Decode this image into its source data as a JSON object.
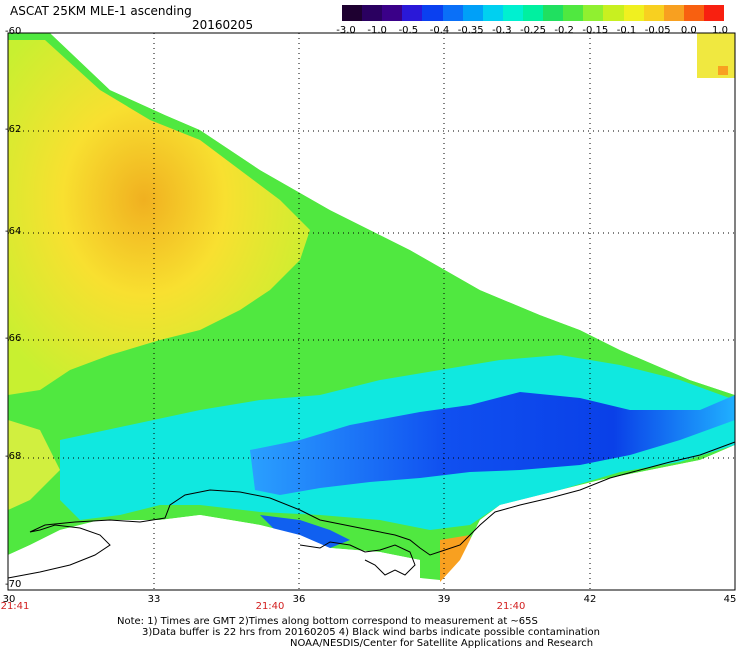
{
  "title": "ASCAT 25KM MLE-1 ascending",
  "date": "20160205",
  "colorbar": {
    "labels": [
      "-3.0",
      "-1.0",
      "-0.5",
      "-0.4",
      "-0.35",
      "-0.3",
      "-0.25",
      "-0.2",
      "-0.15",
      "-0.1",
      "-0.05",
      "0.0",
      "1.0"
    ],
    "colors": [
      "#1e0030",
      "#3a0088",
      "#2a18d8",
      "#0a50f0",
      "#0a90f8",
      "#00d0f0",
      "#00f0c0",
      "#20e060",
      "#70f030",
      "#c8f020",
      "#f8f020",
      "#f8a020",
      "#f82010"
    ]
  },
  "latitude_labels": [
    "-60",
    "-62",
    "-64",
    "-66",
    "-68",
    "-70"
  ],
  "longitude_labels": [
    "30",
    "33",
    "36",
    "39",
    "42",
    "45"
  ],
  "time_labels": [
    "21:41",
    "21:40",
    "21:40"
  ],
  "notes": {
    "line1": "Note: 1) Times are GMT 2)Times along bottom correspond to measurement at ~65S",
    "line2": "3)Data buffer is 22 hrs from 20160205 4) Black wind barbs indicate possible contamination",
    "line3": "NOAA/NESDIS/Center for Satellite Applications and Research"
  }
}
